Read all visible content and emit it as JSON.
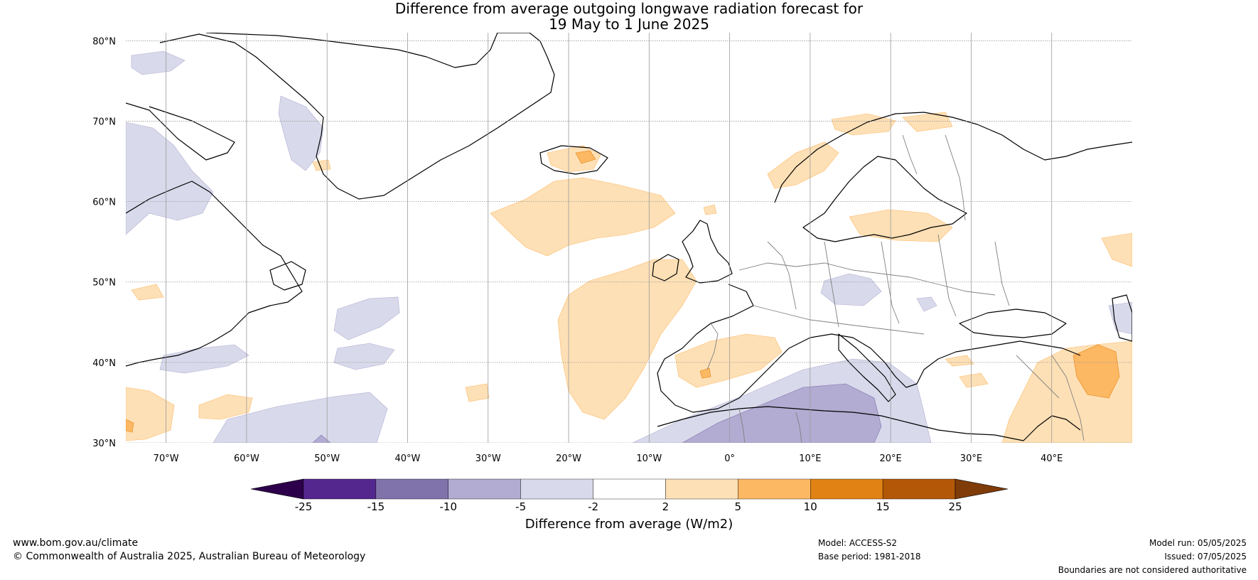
{
  "title": {
    "line1": "Difference from average outgoing longwave radiation forecast for",
    "line2": "19 May to 1 June 2025"
  },
  "map": {
    "projection": "plate-carree",
    "lon_range": [
      -75,
      50
    ],
    "lat_range": [
      30,
      81
    ],
    "grid": true,
    "lat_ticks": [
      {
        "value": 80,
        "label": "80°N"
      },
      {
        "value": 70,
        "label": "70°N"
      },
      {
        "value": 60,
        "label": "60°N"
      },
      {
        "value": 50,
        "label": "50°N"
      },
      {
        "value": 40,
        "label": "40°N"
      },
      {
        "value": 30,
        "label": "30°N"
      }
    ],
    "lon_ticks": [
      {
        "value": -70,
        "label": "70°W"
      },
      {
        "value": -60,
        "label": "60°W"
      },
      {
        "value": -50,
        "label": "50°W"
      },
      {
        "value": -40,
        "label": "40°W"
      },
      {
        "value": -30,
        "label": "30°W"
      },
      {
        "value": -20,
        "label": "20°W"
      },
      {
        "value": -10,
        "label": "10°W"
      },
      {
        "value": 0,
        "label": "0°"
      },
      {
        "value": 10,
        "label": "10°E"
      },
      {
        "value": 20,
        "label": "20°E"
      },
      {
        "value": 30,
        "label": "30°E"
      },
      {
        "value": 40,
        "label": "40°E"
      }
    ],
    "colors": {
      "coast": "#000000",
      "borders": "#808080",
      "grid": "#9a9a9a"
    }
  },
  "colorbar": {
    "title": "Difference from average (W/m2)",
    "bins": [
      {
        "from": -25,
        "to": -15,
        "color": "#54278f"
      },
      {
        "from": -15,
        "to": -10,
        "color": "#8073ac"
      },
      {
        "from": -10,
        "to": -5,
        "color": "#b2abd2"
      },
      {
        "from": -5,
        "to": -2,
        "color": "#d8daeb"
      },
      {
        "from": -2,
        "to": 2,
        "color": "#ffffff"
      },
      {
        "from": 2,
        "to": 5,
        "color": "#fee0b6"
      },
      {
        "from": 5,
        "to": 10,
        "color": "#fdb863"
      },
      {
        "from": 10,
        "to": 15,
        "color": "#e08214"
      },
      {
        "from": 15,
        "to": 25,
        "color": "#b35806"
      }
    ],
    "under_color": "#2d004b",
    "over_color": "#7f3b08",
    "tick_labels": [
      "-25",
      "-15",
      "-10",
      "-5",
      "-2",
      "2",
      "5",
      "10",
      "15",
      "25"
    ]
  },
  "footer": {
    "website": "www.bom.gov.au/climate",
    "copyright": "© Commonwealth of Australia 2025, Australian Bureau of Meteorology",
    "model": "Model: ACCESS-S2",
    "base_period": "Base period: 1981-2018",
    "model_run": "Model run: 05/05/2025",
    "issued": "Issued: 07/05/2025",
    "disclaimer": "Boundaries are not considered authoritative"
  }
}
